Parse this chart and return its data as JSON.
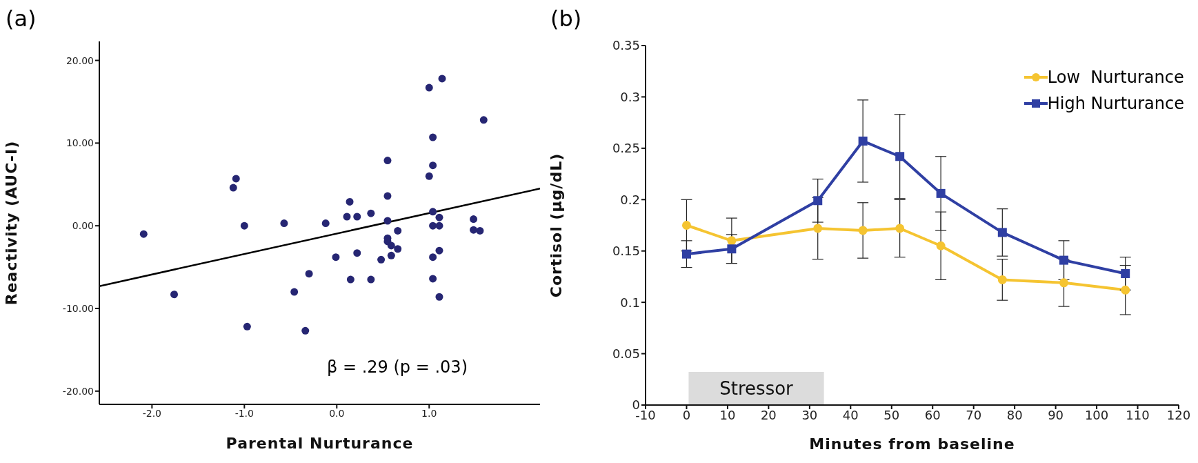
{
  "chart_data": [
    {
      "type": "scatter",
      "title": "(a)",
      "xlabel": "Parental Nurturance",
      "ylabel": "Reactivity (AUC-I)",
      "xlim": [
        -2.57,
        2.2
      ],
      "ylim": [
        -21.6,
        22.3
      ],
      "xticks": [
        {
          "value": -2,
          "label": "-2.0"
        },
        {
          "value": -1,
          "label": "-1.0"
        },
        {
          "value": 0,
          "label": "0.0"
        },
        {
          "value": 1,
          "label": "1.0"
        }
      ],
      "yticks": [
        {
          "value": -20,
          "label": "-20.00"
        },
        {
          "value": -10,
          "label": "-10.00"
        },
        {
          "value": 0,
          "label": "0.00"
        },
        {
          "value": 10,
          "label": "10.00"
        },
        {
          "value": 20,
          "label": "20.00"
        }
      ],
      "series": [
        {
          "color": "#262673",
          "marker": "circle",
          "x": [
            -2.09,
            -1.76,
            -1.12,
            -1.09,
            -1.0,
            -0.97,
            -0.57,
            -0.46,
            -0.34,
            -0.3,
            -0.12,
            -0.01,
            0.11,
            0.14,
            0.15,
            0.22,
            0.22,
            0.37,
            0.37,
            0.48,
            0.55,
            0.55,
            0.55,
            0.55,
            0.55,
            0.59,
            0.59,
            0.66,
            0.66,
            1.0,
            1.0,
            1.04,
            1.04,
            1.04,
            1.04,
            1.04,
            1.04,
            1.11,
            1.11,
            1.11,
            1.11,
            1.14,
            1.48,
            1.48,
            1.55,
            1.59
          ],
          "values": [
            -1.0,
            -8.3,
            4.6,
            5.7,
            0.0,
            -12.2,
            0.3,
            -8.0,
            -12.7,
            -5.8,
            0.3,
            -3.8,
            1.1,
            2.9,
            -6.5,
            1.1,
            -3.3,
            1.5,
            -6.5,
            -4.1,
            7.9,
            3.6,
            0.6,
            -1.5,
            -1.9,
            -2.4,
            -3.6,
            -0.6,
            -2.8,
            16.7,
            6.0,
            10.7,
            7.3,
            1.7,
            0.0,
            -3.8,
            -6.4,
            1.0,
            0.0,
            -3.0,
            -8.6,
            17.8,
            0.8,
            -0.5,
            -0.6,
            12.8
          ]
        },
        {
          "type": "line",
          "color": "#000000",
          "marker": "none",
          "x": [
            -2.57,
            2.2
          ],
          "values": [
            -7.3,
            4.5
          ]
        }
      ],
      "annotations": [
        "β = .29 (p = .03)"
      ]
    },
    {
      "type": "line",
      "title": "(b)",
      "xlabel": "Minutes from baseline",
      "ylabel": "Cortisol (µg/dL)",
      "x": [
        0,
        11,
        32,
        43,
        52,
        62,
        77,
        92,
        107
      ],
      "xlim": [
        -10,
        120
      ],
      "xticks": [
        -10,
        0,
        10,
        20,
        30,
        40,
        50,
        60,
        70,
        80,
        90,
        100,
        110,
        120
      ],
      "ylim": [
        0,
        0.35
      ],
      "yticks": [
        0,
        0.05,
        0.1,
        0.15,
        0.2,
        0.25,
        0.3,
        0.35
      ],
      "legend": "top right",
      "bands": [
        {
          "axis": "x",
          "from": 0.5,
          "to": 33.5,
          "label": "Stressor",
          "color": "#dcdcdc"
        }
      ],
      "series": [
        {
          "name": "Low  Nurturance",
          "color": "#f5c431",
          "marker": "circle",
          "values": [
            0.175,
            0.16,
            0.172,
            0.17,
            0.172,
            0.155,
            0.122,
            0.119,
            0.112
          ],
          "errors": [
            0.025,
            0.022,
            0.03,
            0.027,
            0.028,
            0.033,
            0.02,
            0.023,
            0.024
          ]
        },
        {
          "name": "High Nurturance",
          "color": "#2f3fa3",
          "marker": "square",
          "values": [
            0.147,
            0.152,
            0.199,
            0.257,
            0.242,
            0.206,
            0.168,
            0.141,
            0.128
          ],
          "errors": [
            0.013,
            0.014,
            0.021,
            0.04,
            0.041,
            0.036,
            0.023,
            0.019,
            0.016
          ]
        }
      ]
    }
  ]
}
